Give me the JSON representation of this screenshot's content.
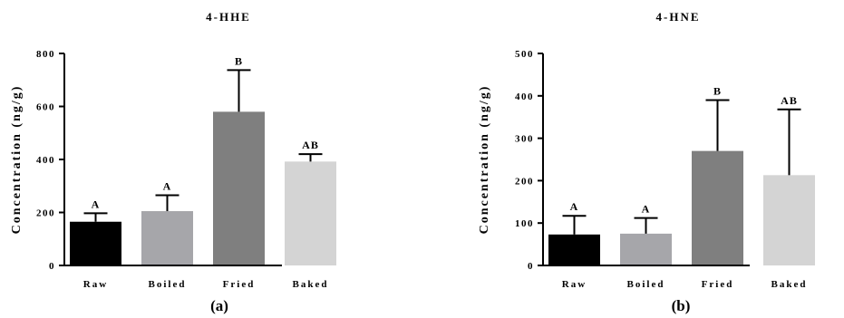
{
  "chart_data": [
    {
      "type": "bar",
      "title": "4-HHE",
      "panel_label": "(a)",
      "ylabel": "Concentration (ng/g)",
      "xlabel": "",
      "categories": [
        "Raw",
        "Boiled",
        "Fried",
        "Baked"
      ],
      "values": [
        165,
        205,
        580,
        392
      ],
      "error_upper": [
        197,
        265,
        737,
        420
      ],
      "significance": [
        "A",
        "A",
        "B",
        "AB"
      ],
      "colors": [
        "#000000",
        "#a6a6aa",
        "#7f7f7f",
        "#d4d4d4"
      ],
      "ylim": [
        0,
        800
      ],
      "yticks": [
        0,
        200,
        400,
        600,
        800
      ],
      "grid": false
    },
    {
      "type": "bar",
      "title": "4-HNE",
      "panel_label": "(b)",
      "ylabel": "Concentration (ng/g)",
      "xlabel": "",
      "categories": [
        "Raw",
        "Boiled",
        "Fried",
        "Baked"
      ],
      "values": [
        73,
        75,
        270,
        213
      ],
      "error_upper": [
        117,
        112,
        390,
        368
      ],
      "significance": [
        "A",
        "A",
        "B",
        "AB"
      ],
      "colors": [
        "#000000",
        "#a6a6aa",
        "#7f7f7f",
        "#d4d4d4"
      ],
      "ylim": [
        0,
        500
      ],
      "yticks": [
        0,
        100,
        200,
        300,
        400,
        500
      ],
      "grid": false
    }
  ]
}
